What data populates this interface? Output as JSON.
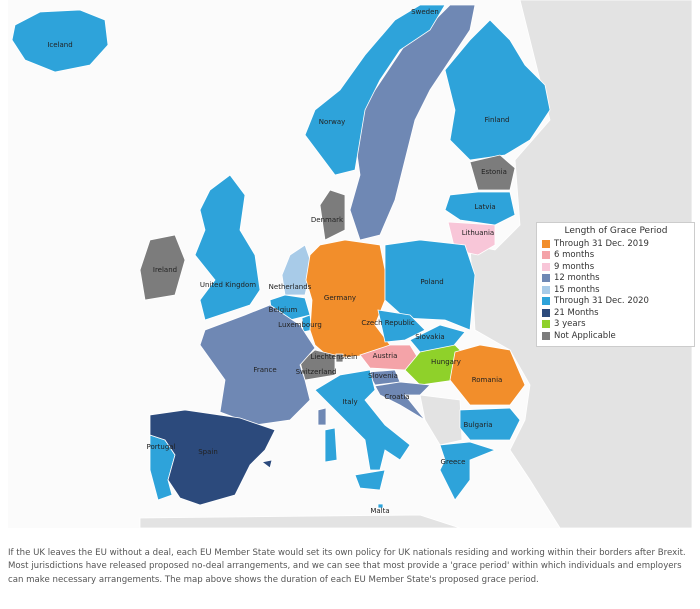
{
  "legend": {
    "title": "Length of Grace Period",
    "items": [
      {
        "label": "Through 31 Dec. 2019",
        "color": "#f28e2b"
      },
      {
        "label": "6 months",
        "color": "#f4a3a8"
      },
      {
        "label": "9 months",
        "color": "#f8c6d8"
      },
      {
        "label": "12 months",
        "color": "#6f88b4"
      },
      {
        "label": "15 months",
        "color": "#a8cbe8"
      },
      {
        "label": "Through 31 Dec. 2020",
        "color": "#2ea3da"
      },
      {
        "label": "21 Months",
        "color": "#2c4a7c"
      },
      {
        "label": "3 years",
        "color": "#8fd12a"
      },
      {
        "label": "Not Applicable",
        "color": "#7c7c7c"
      }
    ]
  },
  "countries": [
    {
      "name": "Iceland",
      "category": 5
    },
    {
      "name": "Sweden",
      "category": 3
    },
    {
      "name": "Norway",
      "category": 5
    },
    {
      "name": "Finland",
      "category": 5
    },
    {
      "name": "Estonia",
      "category": 8
    },
    {
      "name": "Latvia",
      "category": 5
    },
    {
      "name": "Lithuania",
      "category": 2
    },
    {
      "name": "Denmark",
      "category": 8
    },
    {
      "name": "Ireland",
      "category": 8
    },
    {
      "name": "United Kingdom",
      "category": 5
    },
    {
      "name": "Netherlands",
      "category": 4
    },
    {
      "name": "Belgium",
      "category": 5
    },
    {
      "name": "Luxembourg",
      "category": 5
    },
    {
      "name": "Germany",
      "category": 0
    },
    {
      "name": "Poland",
      "category": 5
    },
    {
      "name": "Czech Republic",
      "category": 5
    },
    {
      "name": "Slovakia",
      "category": 5
    },
    {
      "name": "Austria",
      "category": 1
    },
    {
      "name": "Hungary",
      "category": 7
    },
    {
      "name": "Romania",
      "category": 0
    },
    {
      "name": "Liechtenstein",
      "category": 8
    },
    {
      "name": "Switzerland",
      "category": 8
    },
    {
      "name": "France",
      "category": 3
    },
    {
      "name": "Slovenia",
      "category": 3
    },
    {
      "name": "Croatia",
      "category": 3
    },
    {
      "name": "Italy",
      "category": 5
    },
    {
      "name": "Bulgaria",
      "category": 5
    },
    {
      "name": "Greece",
      "category": 5
    },
    {
      "name": "Portugal",
      "category": 5
    },
    {
      "name": "Spain",
      "category": 6
    },
    {
      "name": "Malta",
      "category": 5
    }
  ],
  "caption": "If the UK leaves the EU without a deal, each EU Member State would set its own policy for UK nationals residing and working within their borders after Brexit. Most jurisdictions have released proposed no-deal arrangements, and we can see that most provide a 'grace period' within which individuals and employers can make necessary arrangements. The map above shows the duration of each EU Member State's proposed grace period."
}
